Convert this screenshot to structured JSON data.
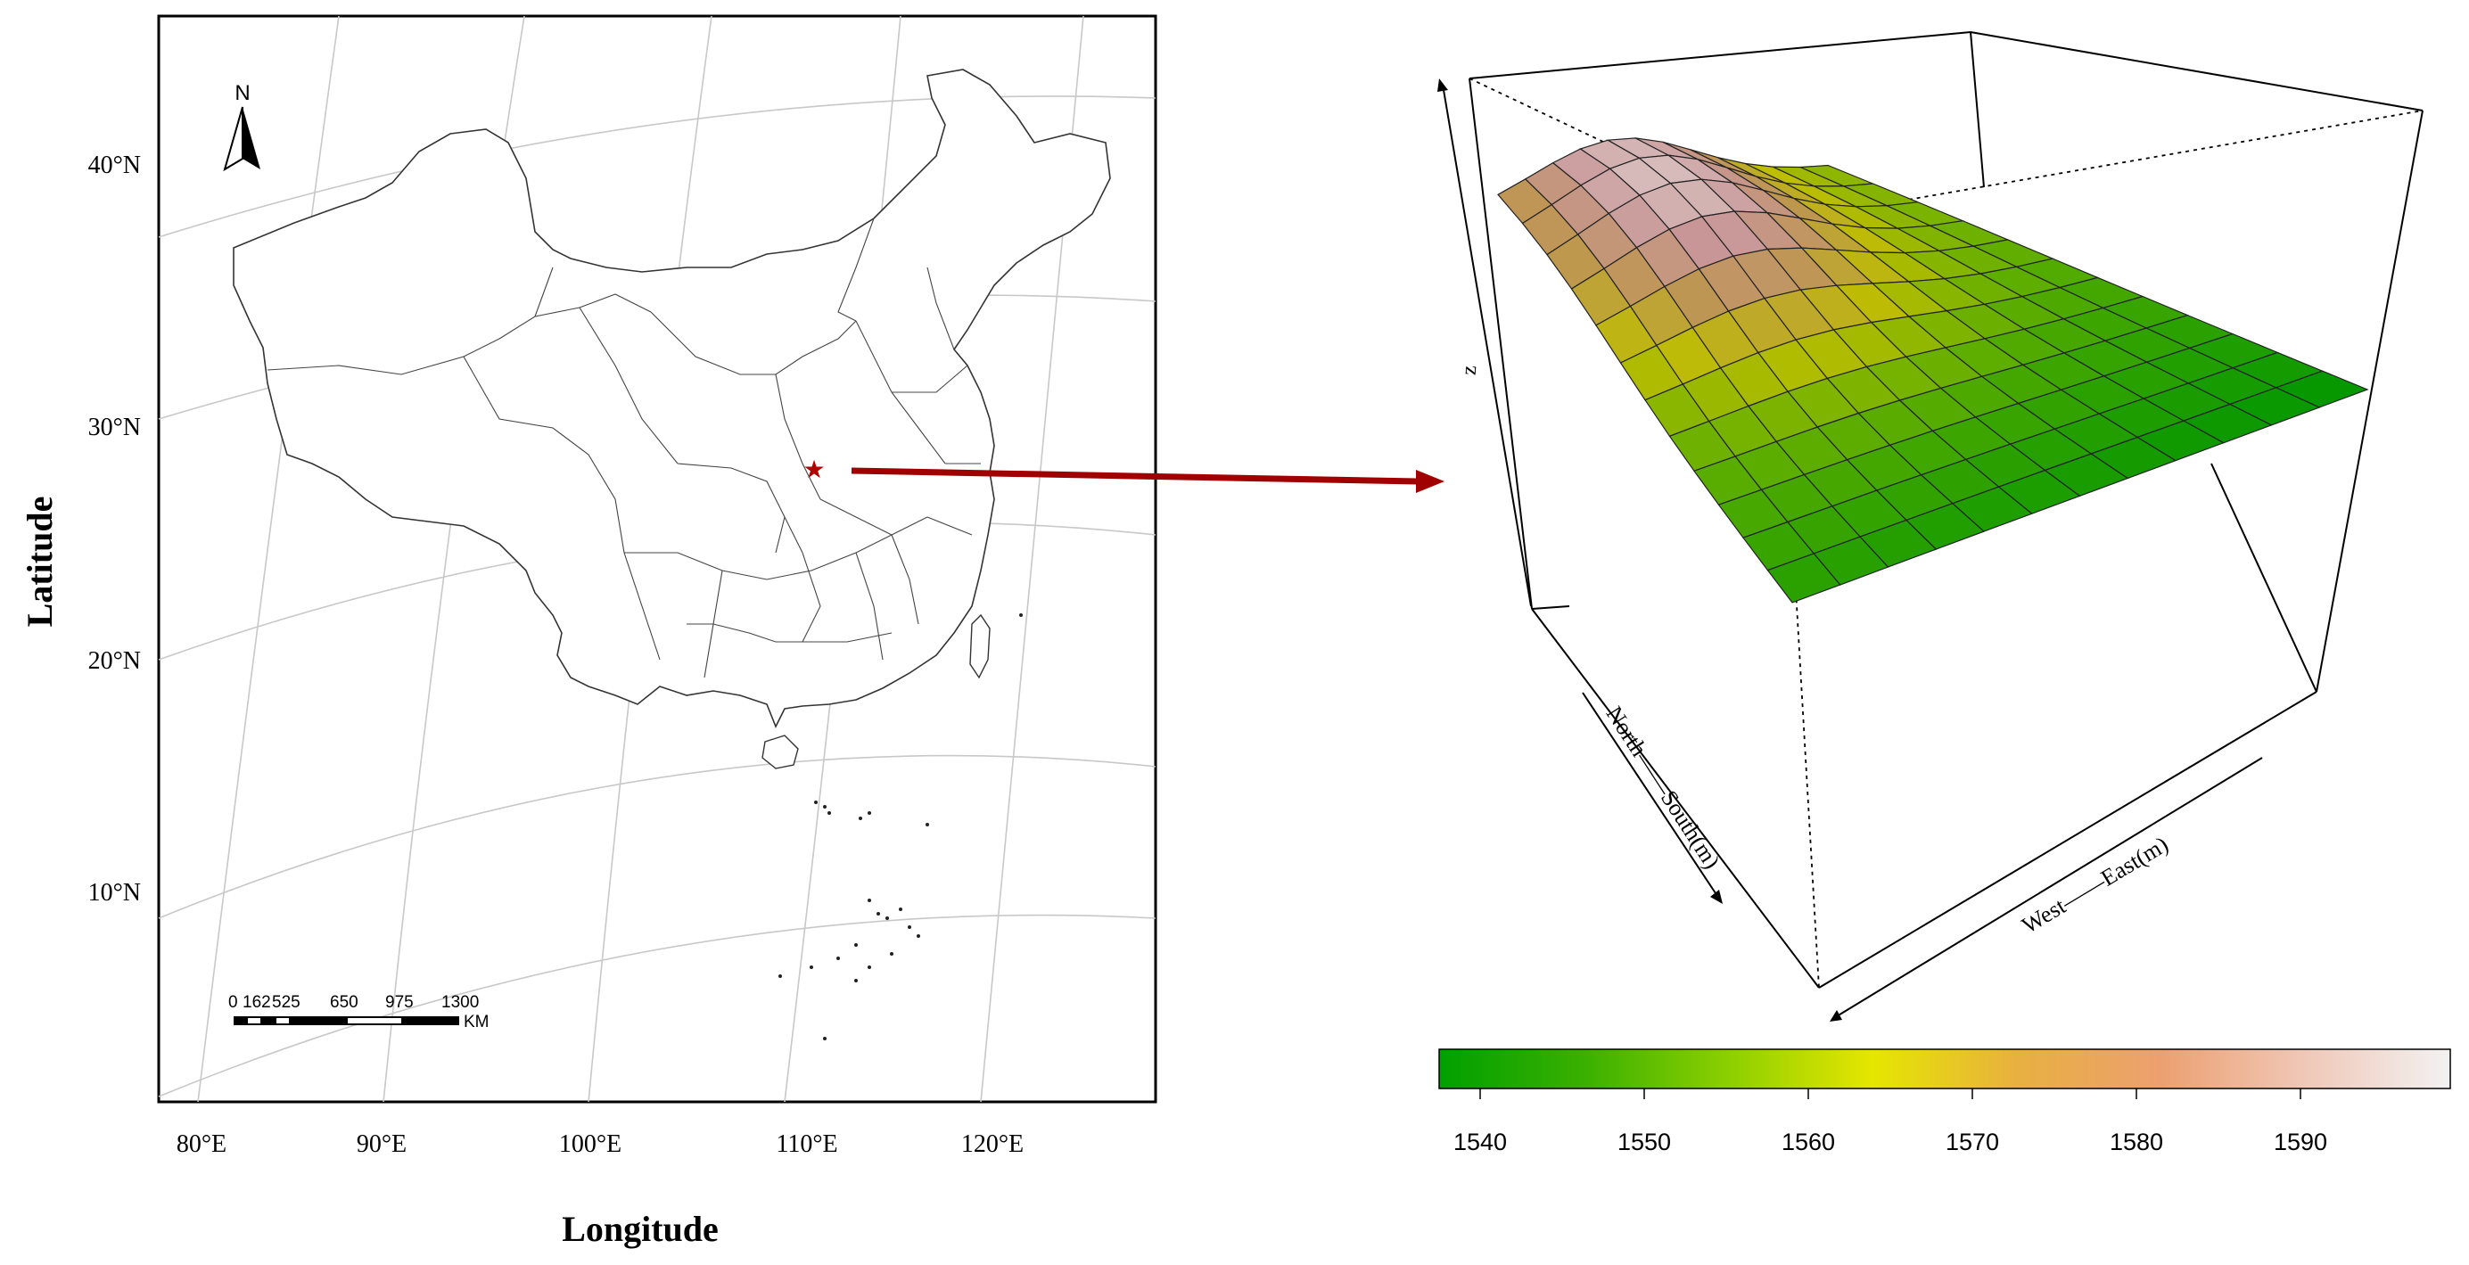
{
  "map": {
    "ylabel": "Latitude",
    "xlabel": "Longitude",
    "lat_ticks": [
      "40°N",
      "30°N",
      "20°N",
      "10°N"
    ],
    "lon_ticks": [
      "80°E",
      "90°E",
      "100°E",
      "110°E",
      "120°E"
    ],
    "north_label": "N",
    "scale_bar": {
      "labels": [
        "0",
        "162",
        "525",
        "650",
        "975",
        "1300"
      ],
      "unit": "KM"
    },
    "marker": {
      "symbol": "★",
      "color": "#b00000"
    }
  },
  "arrow": {
    "color": "#a00000"
  },
  "surface": {
    "z_label": "z",
    "ns_label": "North——South(m)",
    "we_label": "West——East(m)"
  },
  "colorbar": {
    "ticks": [
      "1540",
      "1550",
      "1560",
      "1570",
      "1580",
      "1590"
    ],
    "colors": [
      "#00a000",
      "#3ab000",
      "#8ccf00",
      "#e6e600",
      "#e8b040",
      "#eca070",
      "#f0c8b8",
      "#f2f2f2"
    ]
  }
}
